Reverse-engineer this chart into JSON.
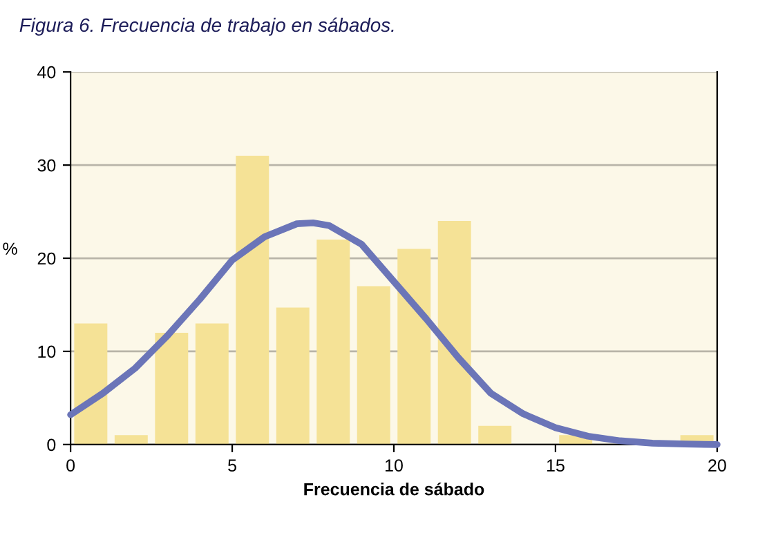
{
  "chart_data": {
    "type": "histogram",
    "title": "Figura 6. Frecuencia de trabajo en sábados.",
    "xlabel": "Frecuencia de sábado",
    "ylabel": "%",
    "bins": [
      0,
      1.25,
      2.5,
      3.75,
      5,
      6.25,
      7.5,
      8.75,
      10,
      11.25,
      12.5,
      13.75,
      15,
      16.25,
      17.5,
      18.75,
      20
    ],
    "values": [
      13,
      1,
      12,
      13,
      31,
      14.7,
      22,
      17,
      21,
      24,
      2,
      0,
      1,
      0,
      0,
      1
    ],
    "color": "#f5e296",
    "series": [
      {
        "type": "line",
        "color": "#6b75b8",
        "x": [
          0,
          1,
          2,
          3,
          4,
          5,
          6,
          7,
          7.5,
          8,
          9,
          10,
          11,
          12,
          13,
          14,
          15,
          16,
          17,
          18,
          19,
          20
        ],
        "values": [
          3.2,
          5.5,
          8.2,
          11.7,
          15.6,
          19.8,
          22.3,
          23.7,
          23.8,
          23.5,
          21.5,
          17.5,
          13.5,
          9.3,
          5.5,
          3.3,
          1.8,
          0.9,
          0.4,
          0.15,
          0.05,
          0
        ]
      }
    ],
    "xlim": [
      0,
      20
    ],
    "ylim": [
      0,
      40
    ],
    "xticks": [
      0,
      5,
      10,
      15,
      20
    ],
    "yticks": [
      0,
      10,
      20,
      30,
      40
    ],
    "grid": "y"
  }
}
